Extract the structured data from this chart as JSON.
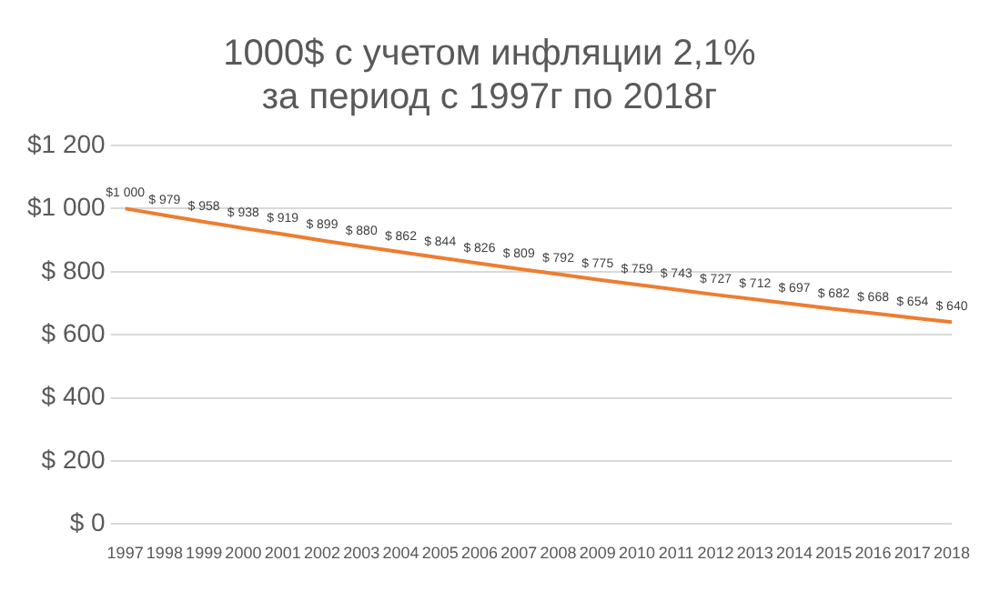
{
  "chart_data": {
    "type": "line",
    "title": "1000$ с учетом инфляции 2,1%\nза период с 1997г по 2018г",
    "categories": [
      "1997",
      "1998",
      "1999",
      "2000",
      "2001",
      "2002",
      "2003",
      "2004",
      "2005",
      "2006",
      "2007",
      "2008",
      "2009",
      "2010",
      "2011",
      "2012",
      "2013",
      "2014",
      "2015",
      "2016",
      "2017",
      "2018"
    ],
    "series": [
      {
        "color": "#ed7d31",
        "values": [
          1000,
          979,
          958,
          938,
          919,
          899,
          880,
          862,
          844,
          826,
          809,
          792,
          775,
          759,
          743,
          727,
          712,
          697,
          682,
          668,
          654,
          640
        ],
        "value_labels": [
          "$1 000",
          "$ 979",
          "$ 958",
          "$ 938",
          "$ 919",
          "$ 899",
          "$ 880",
          "$ 862",
          "$ 844",
          "$ 826",
          "$ 809",
          "$ 792",
          "$ 775",
          "$ 759",
          "$ 743",
          "$ 727",
          "$ 712",
          "$ 697",
          "$ 682",
          "$ 668",
          "$ 654",
          "$ 640"
        ]
      }
    ],
    "ylim": [
      0,
      1200
    ],
    "yticks": [
      {
        "value": 0,
        "label": "$ 0"
      },
      {
        "value": 200,
        "label": "$ 200"
      },
      {
        "value": 400,
        "label": "$ 400"
      },
      {
        "value": 600,
        "label": "$ 600"
      },
      {
        "value": 800,
        "label": "$ 800"
      },
      {
        "value": 1000,
        "label": "$1 000"
      },
      {
        "value": 1200,
        "label": "$1 200"
      }
    ],
    "grid": "y",
    "legend": false,
    "marker": "none",
    "line_style": "solid"
  }
}
